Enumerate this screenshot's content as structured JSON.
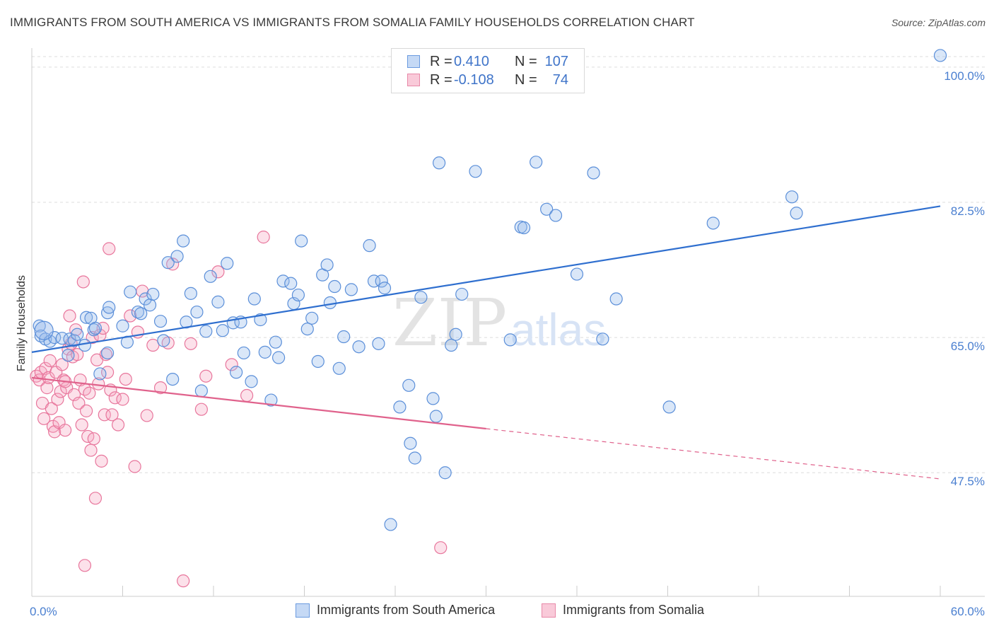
{
  "title": "IMMIGRANTS FROM SOUTH AMERICA VS IMMIGRANTS FROM SOMALIA FAMILY HOUSEHOLDS CORRELATION CHART",
  "source": "Source: ZipAtlas.com",
  "watermark": {
    "zip": "ZIP",
    "atlas": "atlas"
  },
  "legend": {
    "rows": [
      {
        "r_label": "R =",
        "r_value": "0.410",
        "n_label": "N =",
        "n_value": "107",
        "color": "#6b9be0",
        "fill": "#c5d9f5"
      },
      {
        "r_label": "R =",
        "r_value": "-0.108",
        "n_label": "N =",
        "n_value": "74",
        "color": "#e889a8",
        "fill": "#f9cad9"
      }
    ]
  },
  "colors": {
    "blue": "#5b8fd9",
    "blue_line": "#2f6fcf",
    "pink": "#e8769c",
    "pink_line": "#e0628c",
    "grid": "#dddddd",
    "tick_text": "#4a7fd0"
  },
  "chart_data": {
    "type": "scatter",
    "title": "IMMIGRANTS FROM SOUTH AMERICA VS IMMIGRANTS FROM SOMALIA FAMILY HOUSEHOLDS CORRELATION CHART",
    "ylabel": "Family Households",
    "xlim": [
      0,
      60
    ],
    "ylim": [
      31.5,
      102
    ],
    "x_tick_labels": [
      "0.0%",
      "60.0%"
    ],
    "y_ticks": [
      47.5,
      65.0,
      82.5,
      100.0
    ],
    "y_tick_labels": [
      "47.5%",
      "65.0%",
      "82.5%",
      "100.0%"
    ],
    "grid": true,
    "legend_position": "bottom",
    "series": [
      {
        "name": "Immigrants from South America",
        "color": "#5b8fd9",
        "trend": {
          "x": [
            0,
            60
          ],
          "y": [
            63.1,
            82.0
          ],
          "style": "solid"
        },
        "points": [
          [
            0.5,
            66.5
          ],
          [
            0.6,
            65.2
          ],
          [
            0.9,
            64.8
          ],
          [
            1.2,
            64.5
          ],
          [
            1.5,
            65.0
          ],
          [
            2.0,
            64.9
          ],
          [
            2.4,
            62.7
          ],
          [
            2.5,
            64.8
          ],
          [
            2.8,
            64.6
          ],
          [
            3.0,
            65.4
          ],
          [
            3.5,
            64.0
          ],
          [
            3.6,
            67.6
          ],
          [
            3.9,
            67.5
          ],
          [
            4.1,
            66.0
          ],
          [
            4.2,
            66.2
          ],
          [
            4.5,
            60.3
          ],
          [
            5.0,
            63.0
          ],
          [
            5.0,
            68.2
          ],
          [
            5.1,
            68.9
          ],
          [
            6.0,
            66.5
          ],
          [
            6.3,
            64.4
          ],
          [
            6.5,
            70.9
          ],
          [
            7.0,
            68.3
          ],
          [
            7.2,
            68.1
          ],
          [
            7.5,
            70.0
          ],
          [
            7.8,
            69.2
          ],
          [
            8.0,
            70.6
          ],
          [
            8.5,
            67.1
          ],
          [
            8.7,
            64.6
          ],
          [
            9.0,
            74.7
          ],
          [
            9.3,
            59.6
          ],
          [
            9.6,
            75.5
          ],
          [
            10.0,
            77.5
          ],
          [
            10.2,
            67.0
          ],
          [
            10.5,
            70.7
          ],
          [
            10.9,
            68.3
          ],
          [
            11.2,
            58.1
          ],
          [
            11.5,
            65.8
          ],
          [
            11.8,
            72.9
          ],
          [
            12.3,
            69.6
          ],
          [
            12.6,
            65.9
          ],
          [
            12.9,
            74.6
          ],
          [
            13.3,
            66.9
          ],
          [
            13.5,
            60.5
          ],
          [
            13.8,
            67.0
          ],
          [
            14.0,
            63.0
          ],
          [
            14.5,
            59.3
          ],
          [
            14.7,
            70.0
          ],
          [
            15.1,
            67.3
          ],
          [
            15.4,
            63.1
          ],
          [
            15.8,
            56.9
          ],
          [
            16.1,
            64.4
          ],
          [
            16.3,
            62.4
          ],
          [
            16.6,
            72.3
          ],
          [
            17.1,
            72.0
          ],
          [
            17.3,
            69.4
          ],
          [
            17.6,
            70.5
          ],
          [
            17.8,
            77.5
          ],
          [
            18.2,
            66.1
          ],
          [
            18.5,
            67.5
          ],
          [
            18.9,
            61.9
          ],
          [
            19.2,
            73.1
          ],
          [
            19.5,
            74.4
          ],
          [
            19.7,
            69.5
          ],
          [
            20.0,
            71.6
          ],
          [
            20.3,
            61.0
          ],
          [
            20.6,
            65.1
          ],
          [
            21.1,
            71.2
          ],
          [
            21.6,
            63.8
          ],
          [
            22.3,
            76.9
          ],
          [
            22.6,
            72.3
          ],
          [
            22.9,
            64.2
          ],
          [
            23.1,
            72.3
          ],
          [
            23.3,
            71.4
          ],
          [
            23.7,
            40.8
          ],
          [
            24.3,
            56.0
          ],
          [
            24.9,
            58.8
          ],
          [
            25.0,
            51.3
          ],
          [
            25.3,
            49.4
          ],
          [
            25.7,
            70.2
          ],
          [
            26.5,
            57.1
          ],
          [
            26.7,
            54.8
          ],
          [
            26.9,
            87.6
          ],
          [
            27.3,
            47.5
          ],
          [
            27.7,
            64.0
          ],
          [
            28.0,
            65.4
          ],
          [
            28.4,
            70.6
          ],
          [
            29.3,
            86.5
          ],
          [
            31.6,
            64.7
          ],
          [
            32.3,
            79.3
          ],
          [
            32.5,
            79.2
          ],
          [
            33.3,
            87.7
          ],
          [
            34.0,
            81.6
          ],
          [
            34.6,
            80.8
          ],
          [
            36.0,
            73.2
          ],
          [
            37.1,
            86.3
          ],
          [
            37.7,
            64.8
          ],
          [
            38.6,
            70.0
          ],
          [
            42.1,
            56.0
          ],
          [
            45.0,
            79.8
          ],
          [
            50.2,
            83.2
          ],
          [
            50.5,
            81.1
          ],
          [
            60.0,
            101.5
          ],
          [
            27.5,
            101.5
          ]
        ]
      },
      {
        "name": "Immigrants from Somalia",
        "color": "#e8769c",
        "trend": {
          "x": [
            0,
            30,
            60
          ],
          "y": [
            59.8,
            53.2,
            46.7
          ],
          "style": "solid-then-dashed"
        },
        "points": [
          [
            0.3,
            60.0
          ],
          [
            0.5,
            59.5
          ],
          [
            0.6,
            60.5
          ],
          [
            0.7,
            56.5
          ],
          [
            0.8,
            54.5
          ],
          [
            0.9,
            61.0
          ],
          [
            1.0,
            58.5
          ],
          [
            1.1,
            59.8
          ],
          [
            1.2,
            62.0
          ],
          [
            1.3,
            55.8
          ],
          [
            1.4,
            53.5
          ],
          [
            1.5,
            52.8
          ],
          [
            1.6,
            60.5
          ],
          [
            1.7,
            57.0
          ],
          [
            1.8,
            54.0
          ],
          [
            1.9,
            58.0
          ],
          [
            2.0,
            61.5
          ],
          [
            2.1,
            59.5
          ],
          [
            2.2,
            53.0
          ],
          [
            2.3,
            58.5
          ],
          [
            2.4,
            63.5
          ],
          [
            2.5,
            67.8
          ],
          [
            2.6,
            64.2
          ],
          [
            2.7,
            62.5
          ],
          [
            2.8,
            57.6
          ],
          [
            2.9,
            66.0
          ],
          [
            3.0,
            62.8
          ],
          [
            3.1,
            56.5
          ],
          [
            3.2,
            59.5
          ],
          [
            3.3,
            53.7
          ],
          [
            3.4,
            72.2
          ],
          [
            3.5,
            58.3
          ],
          [
            3.6,
            55.5
          ],
          [
            3.7,
            52.2
          ],
          [
            3.8,
            57.8
          ],
          [
            3.9,
            50.4
          ],
          [
            4.0,
            65.0
          ],
          [
            4.1,
            51.9
          ],
          [
            4.2,
            44.2
          ],
          [
            4.3,
            62.1
          ],
          [
            4.4,
            59.0
          ],
          [
            4.5,
            65.3
          ],
          [
            4.6,
            49.0
          ],
          [
            4.7,
            66.2
          ],
          [
            4.8,
            55.0
          ],
          [
            4.9,
            62.8
          ],
          [
            5.0,
            60.5
          ],
          [
            5.1,
            76.5
          ],
          [
            5.2,
            58.2
          ],
          [
            5.3,
            55.0
          ],
          [
            5.5,
            57.2
          ],
          [
            5.7,
            53.7
          ],
          [
            6.0,
            57.0
          ],
          [
            6.2,
            59.6
          ],
          [
            6.5,
            67.8
          ],
          [
            6.8,
            48.3
          ],
          [
            7.0,
            65.7
          ],
          [
            7.3,
            71.0
          ],
          [
            7.6,
            54.9
          ],
          [
            8.0,
            64.0
          ],
          [
            8.5,
            58.5
          ],
          [
            9.0,
            64.3
          ],
          [
            9.3,
            74.5
          ],
          [
            10.0,
            33.5
          ],
          [
            10.5,
            64.2
          ],
          [
            11.2,
            55.7
          ],
          [
            11.5,
            60.0
          ],
          [
            12.3,
            73.5
          ],
          [
            13.2,
            61.5
          ],
          [
            14.2,
            57.5
          ],
          [
            15.3,
            78.0
          ],
          [
            27.0,
            37.8
          ],
          [
            3.5,
            35.5
          ],
          [
            2.2,
            59.3
          ]
        ]
      }
    ]
  }
}
